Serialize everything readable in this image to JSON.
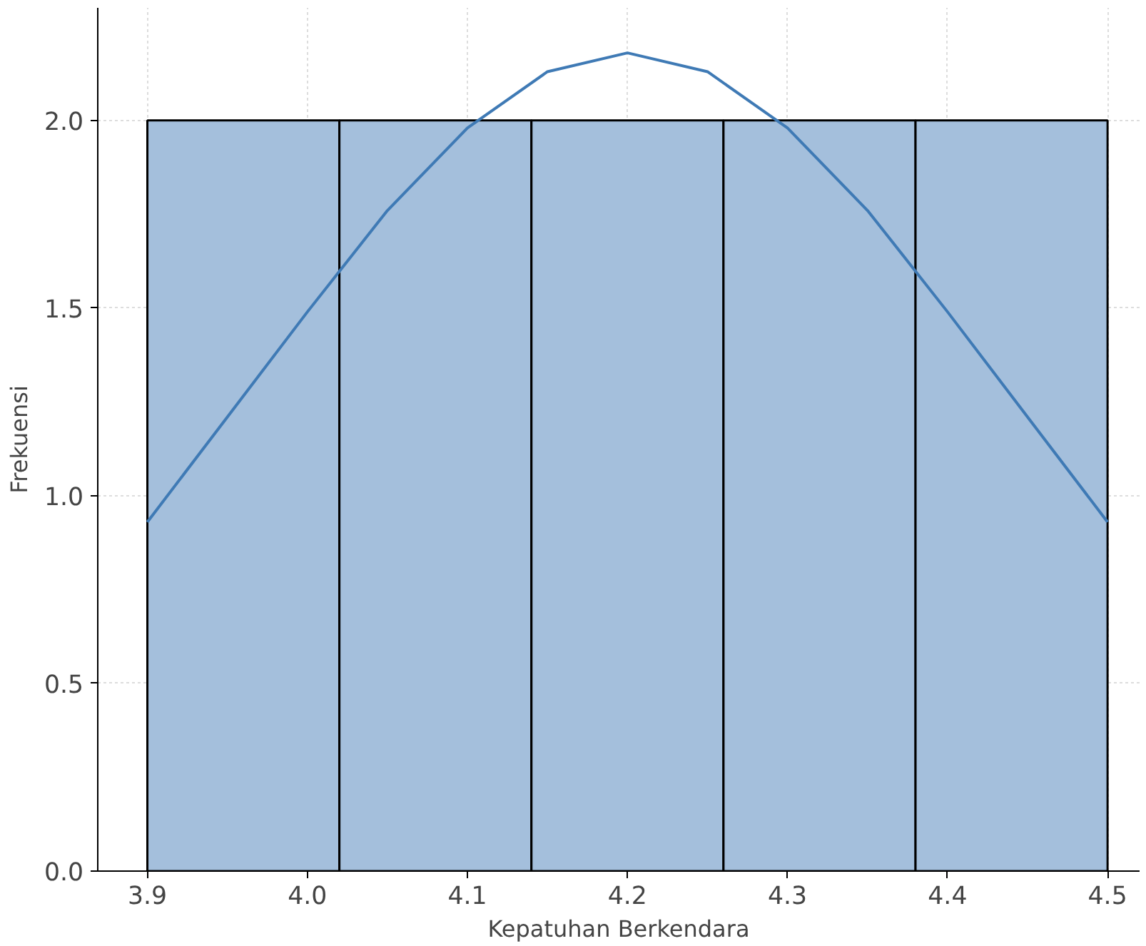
{
  "chart_data": {
    "type": "histogram",
    "xlabel": "Kepatuhan Berkendara",
    "ylabel": "Frekuensi",
    "bins": [
      3.9,
      4.02,
      4.14,
      4.26,
      4.38,
      4.5
    ],
    "values": [
      2,
      2,
      2,
      2,
      2
    ],
    "color": "#a4bfdc",
    "series": [
      {
        "type": "line",
        "color": "#3f7ab5",
        "x": [
          3.9,
          3.95,
          4.0,
          4.05,
          4.1,
          4.15,
          4.2,
          4.25,
          4.3,
          4.35,
          4.4,
          4.45,
          4.5
        ],
        "values": [
          0.93,
          1.21,
          1.49,
          1.76,
          1.98,
          2.13,
          2.18,
          2.13,
          1.98,
          1.76,
          1.49,
          1.21,
          0.93
        ]
      }
    ],
    "xlim": [
      3.869,
      4.52
    ],
    "ylim": [
      0,
      2.3
    ],
    "xticks": [
      3.9,
      {
        "value": 4,
        "label": "4.0"
      },
      4.1,
      4.2,
      4.3,
      4.4,
      4.5
    ],
    "yticks": [
      {
        "value": 0,
        "label": "0.0"
      },
      0.5,
      {
        "value": 1,
        "label": "1.0"
      },
      1.5,
      {
        "value": 2,
        "label": "2.0"
      }
    ],
    "grid": true,
    "line_style": "solid"
  }
}
